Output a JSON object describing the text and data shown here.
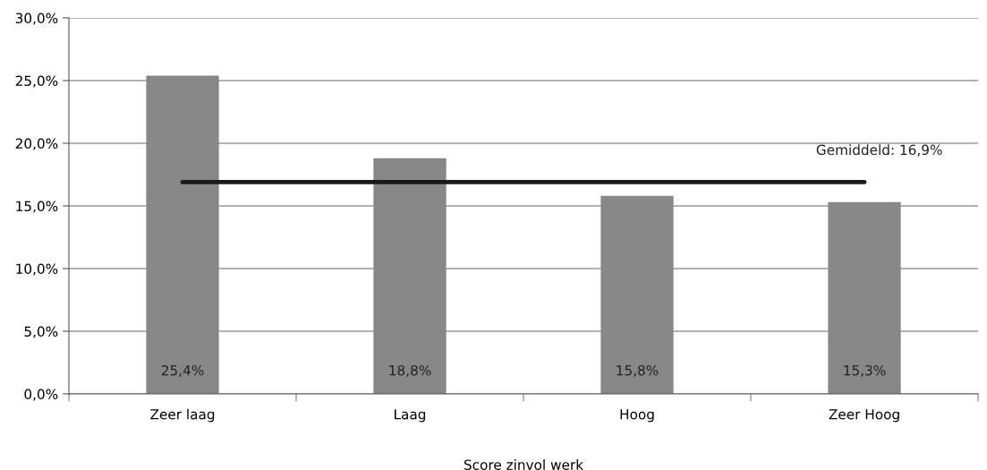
{
  "chart_data": {
    "type": "bar",
    "xlabel": "Score zinvol werk",
    "categories": [
      "Zeer laag",
      "Laag",
      "Hoog",
      "Zeer Hoog"
    ],
    "values": [
      25.4,
      18.8,
      15.8,
      15.3
    ],
    "color": "#878787",
    "value_labels": [
      "25,4%",
      "18,8%",
      "15,8%",
      "15,3%"
    ],
    "ylim": [
      0,
      30
    ],
    "yticks": [
      {
        "value": 0,
        "label": "0,0%"
      },
      {
        "value": 5,
        "label": "5,0%"
      },
      {
        "value": 10,
        "label": "10,0%"
      },
      {
        "value": 15,
        "label": "15,0%"
      },
      {
        "value": 20,
        "label": "20,0%"
      },
      {
        "value": 25,
        "label": "25,0%"
      },
      {
        "value": 30,
        "label": "30,0%"
      }
    ],
    "grid": "y",
    "ref_lines": [
      {
        "axis": "y",
        "value": 16.9,
        "label": "Gemiddeld: 16,9%",
        "color": "#1a1a1a",
        "line_style": "solid"
      }
    ]
  }
}
